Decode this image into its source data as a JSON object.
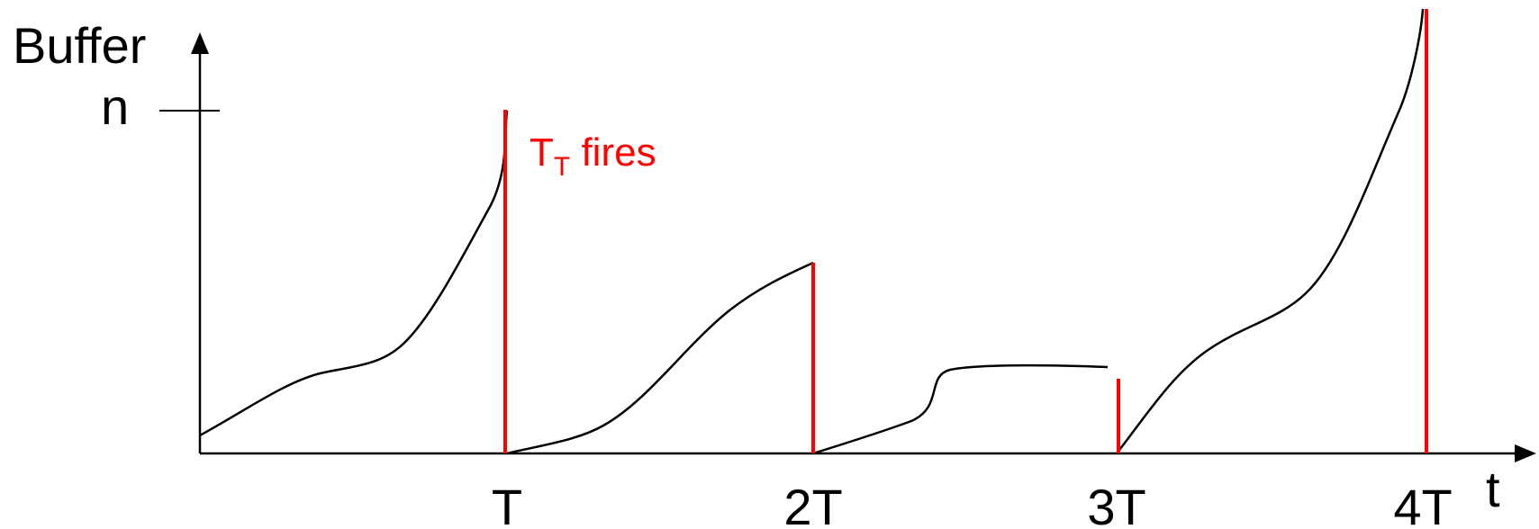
{
  "y_axis": {
    "label": "Buffer",
    "tick_label": "n"
  },
  "x_axis": {
    "label": "t",
    "ticks": [
      "T",
      "2T",
      "3T",
      "4T"
    ]
  },
  "annotation": {
    "main": "T",
    "subscript": "T",
    "suffix": " fires"
  },
  "colors": {
    "curve": "#000000",
    "axis": "#000000",
    "trigger": "#ff0000"
  }
}
